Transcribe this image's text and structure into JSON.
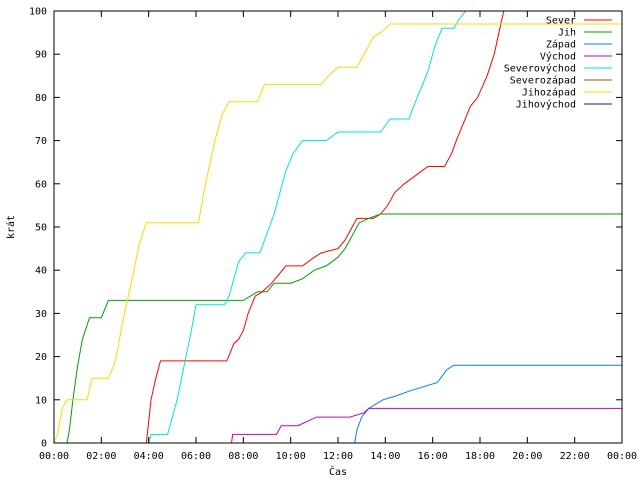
{
  "chart_data": {
    "type": "line",
    "xlabel": "Čas",
    "ylabel": "krát",
    "xlim": [
      0,
      24
    ],
    "ylim": [
      0,
      100
    ],
    "x_ticks": [
      0,
      2,
      4,
      6,
      8,
      10,
      12,
      14,
      16,
      18,
      20,
      22,
      24
    ],
    "x_tick_labels": [
      "00:00",
      "02:00",
      "04:00",
      "06:00",
      "08:00",
      "10:00",
      "12:00",
      "14:00",
      "16:00",
      "18:00",
      "20:00",
      "22:00",
      "00:00"
    ],
    "y_ticks": [
      0,
      10,
      20,
      30,
      40,
      50,
      60,
      70,
      80,
      90,
      100
    ],
    "y_tick_labels": [
      "0",
      "10",
      "20",
      "30",
      "40",
      "50",
      "60",
      "70",
      "80",
      "90",
      "100"
    ],
    "grid": false,
    "legend_position": "top-right",
    "series": [
      {
        "name": "Sever",
        "color": "#ff0000",
        "points": [
          [
            3.9,
            0
          ],
          [
            4.0,
            5
          ],
          [
            4.1,
            10
          ],
          [
            4.3,
            15
          ],
          [
            4.5,
            19
          ],
          [
            6.0,
            19
          ],
          [
            7.3,
            19
          ],
          [
            7.6,
            23
          ],
          [
            7.8,
            24
          ],
          [
            8.0,
            26
          ],
          [
            8.2,
            30
          ],
          [
            8.5,
            34
          ],
          [
            8.8,
            35
          ],
          [
            9.2,
            37
          ],
          [
            9.5,
            39
          ],
          [
            9.8,
            41
          ],
          [
            10.5,
            41
          ],
          [
            11.0,
            43
          ],
          [
            11.3,
            44
          ],
          [
            12.0,
            45
          ],
          [
            12.3,
            47
          ],
          [
            12.6,
            50
          ],
          [
            12.8,
            52
          ],
          [
            13.5,
            52
          ],
          [
            13.8,
            53
          ],
          [
            14.1,
            55
          ],
          [
            14.4,
            58
          ],
          [
            14.8,
            60
          ],
          [
            15.3,
            62
          ],
          [
            15.8,
            64
          ],
          [
            16.5,
            64
          ],
          [
            16.8,
            67
          ],
          [
            17.0,
            70
          ],
          [
            17.3,
            74
          ],
          [
            17.6,
            78
          ],
          [
            17.9,
            80
          ],
          [
            18.3,
            85
          ],
          [
            18.6,
            90
          ],
          [
            18.8,
            95
          ],
          [
            19.0,
            100
          ]
        ]
      },
      {
        "name": "Jih",
        "color": "#00a000",
        "points": [
          [
            0.55,
            0
          ],
          [
            0.65,
            3
          ],
          [
            0.8,
            10
          ],
          [
            1.0,
            18
          ],
          [
            1.2,
            24
          ],
          [
            1.5,
            29
          ],
          [
            2.0,
            29
          ],
          [
            2.3,
            33
          ],
          [
            4.0,
            33
          ],
          [
            6.0,
            33
          ],
          [
            8.0,
            33
          ],
          [
            8.3,
            34
          ],
          [
            8.6,
            35
          ],
          [
            9.0,
            35
          ],
          [
            9.3,
            37
          ],
          [
            10.0,
            37
          ],
          [
            10.5,
            38
          ],
          [
            11.0,
            40
          ],
          [
            11.5,
            41
          ],
          [
            12.0,
            43
          ],
          [
            12.3,
            45
          ],
          [
            12.6,
            48
          ],
          [
            12.9,
            51
          ],
          [
            13.3,
            52
          ],
          [
            13.8,
            53
          ],
          [
            24,
            53
          ]
        ]
      },
      {
        "name": "Západ",
        "color": "#0080ff",
        "points": [
          [
            12.7,
            0
          ],
          [
            12.8,
            3
          ],
          [
            13.0,
            6
          ],
          [
            13.3,
            8
          ],
          [
            13.6,
            9
          ],
          [
            13.9,
            10
          ],
          [
            14.5,
            11
          ],
          [
            15.0,
            12
          ],
          [
            16.2,
            14
          ],
          [
            16.6,
            17
          ],
          [
            16.9,
            18
          ],
          [
            24,
            18
          ]
        ]
      },
      {
        "name": "Východ",
        "color": "#c000c0",
        "points": [
          [
            7.5,
            0
          ],
          [
            7.55,
            2
          ],
          [
            9.4,
            2
          ],
          [
            9.6,
            4
          ],
          [
            10.3,
            4
          ],
          [
            11.1,
            6
          ],
          [
            12.5,
            6
          ],
          [
            13.1,
            7
          ],
          [
            13.3,
            8
          ],
          [
            24,
            8
          ]
        ]
      },
      {
        "name": "Severovýchod",
        "color": "#00e0e0",
        "points": [
          [
            4.0,
            0
          ],
          [
            4.1,
            2
          ],
          [
            4.8,
            2
          ],
          [
            4.95,
            5
          ],
          [
            5.2,
            10
          ],
          [
            5.5,
            18
          ],
          [
            5.8,
            26
          ],
          [
            6.0,
            32
          ],
          [
            7.2,
            32
          ],
          [
            7.4,
            34
          ],
          [
            7.6,
            38
          ],
          [
            7.8,
            42
          ],
          [
            8.1,
            44
          ],
          [
            8.7,
            44
          ],
          [
            8.9,
            47
          ],
          [
            9.3,
            53
          ],
          [
            9.5,
            57
          ],
          [
            9.8,
            63
          ],
          [
            10.1,
            67
          ],
          [
            10.5,
            70
          ],
          [
            11.5,
            70
          ],
          [
            12.0,
            72
          ],
          [
            13.8,
            72
          ],
          [
            14.2,
            75
          ],
          [
            15.0,
            75
          ],
          [
            15.2,
            78
          ],
          [
            15.5,
            82
          ],
          [
            15.8,
            86
          ],
          [
            16.1,
            92
          ],
          [
            16.4,
            96
          ],
          [
            16.9,
            96
          ],
          [
            17.1,
            98
          ],
          [
            17.4,
            100
          ]
        ]
      },
      {
        "name": "Severozápad",
        "color": "#a05000",
        "points": []
      },
      {
        "name": "Jihozápad",
        "color": "#ffd700",
        "points": [
          [
            0,
            0
          ],
          [
            0.15,
            2
          ],
          [
            0.35,
            8
          ],
          [
            0.55,
            10
          ],
          [
            1.4,
            10
          ],
          [
            1.6,
            15
          ],
          [
            2.3,
            15
          ],
          [
            2.6,
            19
          ],
          [
            2.9,
            28
          ],
          [
            3.3,
            38
          ],
          [
            3.6,
            46
          ],
          [
            3.9,
            51
          ],
          [
            6.1,
            51
          ],
          [
            6.4,
            60
          ],
          [
            6.8,
            70
          ],
          [
            7.1,
            76
          ],
          [
            7.4,
            79
          ],
          [
            8.6,
            79
          ],
          [
            8.9,
            83
          ],
          [
            11.3,
            83
          ],
          [
            11.6,
            85
          ],
          [
            12.0,
            87
          ],
          [
            12.8,
            87
          ],
          [
            13.1,
            90
          ],
          [
            13.5,
            94
          ],
          [
            13.8,
            95
          ],
          [
            14.2,
            97
          ],
          [
            17.0,
            97
          ],
          [
            24,
            97
          ]
        ]
      },
      {
        "name": "Jihovýchod",
        "color": "#4000a0",
        "points": []
      }
    ]
  }
}
